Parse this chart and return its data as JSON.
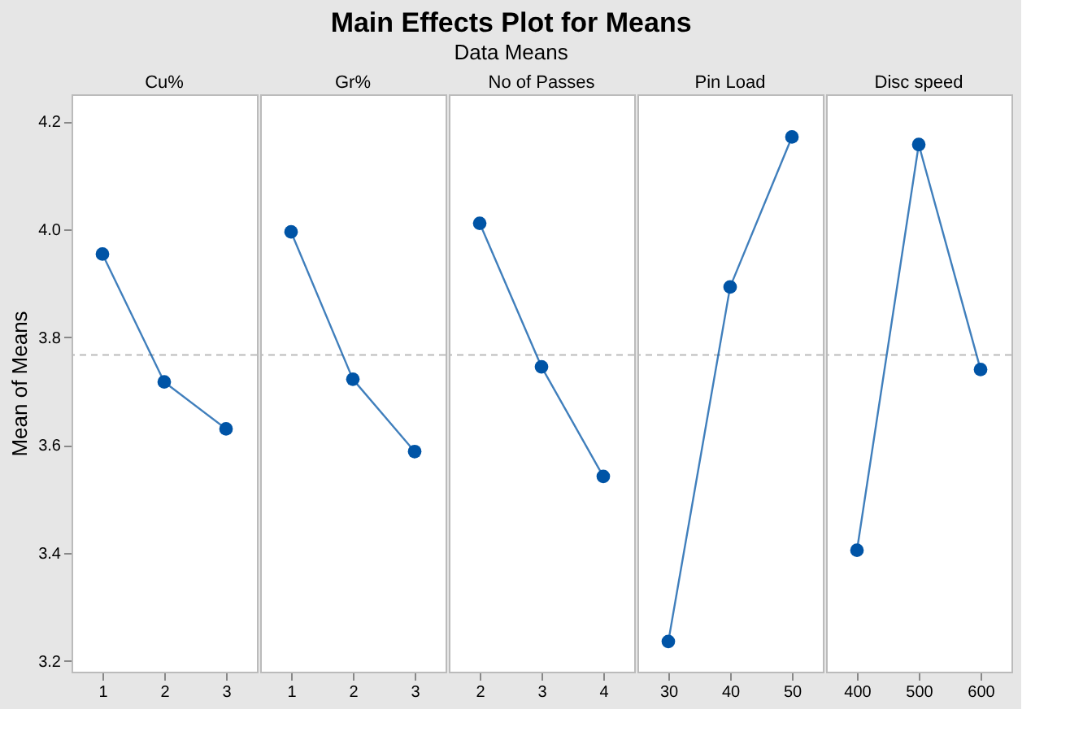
{
  "chart_data": [
    {
      "type": "other",
      "title": "Main Effects Plot for Means",
      "subtitle": "Data Means"
    },
    {
      "type": "line",
      "title": "Cu%",
      "ylabel": "Mean of Means",
      "categories": [
        "1",
        "2",
        "3"
      ],
      "series": [
        {
          "color": "#0054a6",
          "values": [
            3.954,
            3.717,
            3.63
          ]
        }
      ],
      "ylim": [
        3.18,
        4.25
      ],
      "yticks": [
        3.2,
        3.4,
        3.6,
        3.8,
        {
          "value": 4,
          "label": "4.0"
        },
        4.2
      ],
      "marker": "circle",
      "line_style": "solid",
      "grid": false,
      "ref_lines": [
        {
          "axis": "y",
          "value": 3.767,
          "color": "#bbbbbb",
          "line_style": "dashed"
        }
      ]
    },
    {
      "type": "line",
      "title": "Gr%",
      "categories": [
        "1",
        "2",
        "3"
      ],
      "series": [
        {
          "color": "#0054a6",
          "values": [
            3.995,
            3.722,
            3.588
          ]
        }
      ],
      "ylim": [
        3.18,
        4.25
      ],
      "tick_labels": "x",
      "marker": "circle",
      "line_style": "solid",
      "grid": false,
      "ref_lines": [
        {
          "axis": "y",
          "value": 3.767,
          "color": "#bbbbbb",
          "line_style": "dashed"
        }
      ]
    },
    {
      "type": "line",
      "title": "No of Passes",
      "categories": [
        "2",
        "3",
        "4"
      ],
      "series": [
        {
          "color": "#0054a6",
          "values": [
            4.011,
            3.745,
            3.542
          ]
        }
      ],
      "ylim": [
        3.18,
        4.25
      ],
      "tick_labels": "x",
      "marker": "circle",
      "line_style": "solid",
      "grid": false,
      "ref_lines": [
        {
          "axis": "y",
          "value": 3.767,
          "color": "#bbbbbb",
          "line_style": "dashed"
        }
      ]
    },
    {
      "type": "line",
      "title": "Pin Load",
      "categories": [
        "30",
        "40",
        "50"
      ],
      "series": [
        {
          "color": "#0054a6",
          "values": [
            3.236,
            3.893,
            4.171
          ]
        }
      ],
      "ylim": [
        3.18,
        4.25
      ],
      "tick_labels": "x",
      "marker": "circle",
      "line_style": "solid",
      "grid": false,
      "ref_lines": [
        {
          "axis": "y",
          "value": 3.767,
          "color": "#bbbbbb",
          "line_style": "dashed"
        }
      ]
    },
    {
      "type": "line",
      "title": "Disc speed",
      "categories": [
        "400",
        "500",
        "600"
      ],
      "series": [
        {
          "color": "#0054a6",
          "values": [
            3.405,
            4.157,
            3.74
          ]
        }
      ],
      "ylim": [
        3.18,
        4.25
      ],
      "tick_labels": "x",
      "marker": "circle",
      "line_style": "solid",
      "grid": false,
      "ref_lines": [
        {
          "axis": "y",
          "value": 3.767,
          "color": "#bbbbbb",
          "line_style": "dashed"
        }
      ]
    }
  ]
}
